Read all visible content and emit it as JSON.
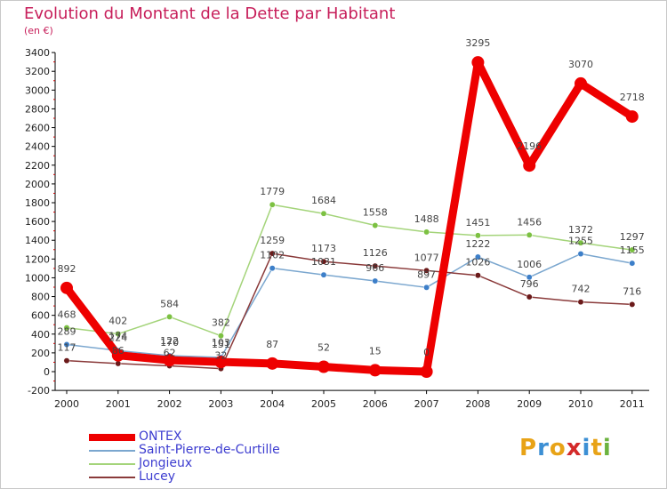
{
  "header": {
    "title": "Evolution du Montant de la Dette par Habitant",
    "subtitle": "(en €)"
  },
  "logo": {
    "text": "Proxiti",
    "letters": [
      "P",
      "r",
      "o",
      "x",
      "i",
      "t",
      "i"
    ],
    "colors": [
      "#e8a317",
      "#3c8fd4",
      "#e8a317",
      "#d42a2a",
      "#3c8fd4",
      "#e8a317",
      "#6cb33f"
    ]
  },
  "chart_data": {
    "type": "line",
    "title": "Evolution du Montant de la Dette par Habitant",
    "ylabel": "(en €)",
    "xlabel": "",
    "categories": [
      "2000",
      "2001",
      "2002",
      "2003",
      "2004",
      "2005",
      "2006",
      "2007",
      "2008",
      "2009",
      "2010",
      "2011"
    ],
    "ylim": [
      -200,
      3400
    ],
    "yticks": [
      -200,
      0,
      200,
      400,
      600,
      800,
      1000,
      1200,
      1400,
      1600,
      1800,
      2000,
      2200,
      2400,
      2600,
      2800,
      3000,
      3200,
      3400
    ],
    "series": [
      {
        "name": "ONTEX",
        "color": "#ee0000",
        "marker": "#ee0000",
        "values": [
          892,
          174,
          122,
          103,
          87,
          52,
          15,
          0,
          3295,
          2196,
          3070,
          2718
        ],
        "labels": [
          "892",
          "174",
          "122",
          "103",
          "87",
          "52",
          "15",
          "0",
          "3295",
          "2196",
          "3070",
          "2718"
        ]
      },
      {
        "name": "Saint-Pierre-de-Curtille",
        "color": "#7ba7cf",
        "marker": "#3d7fc9",
        "values": [
          289,
          224,
          170,
          151,
          1102,
          1031,
          966,
          897,
          1222,
          1006,
          1255,
          1155
        ],
        "labels": [
          "289",
          "224",
          "170",
          "151",
          "1102",
          "1031",
          "966",
          "897",
          "1222",
          "1006",
          "1255",
          "1155"
        ]
      },
      {
        "name": "Jongieux",
        "color": "#a4d47a",
        "marker": "#7cc142",
        "values": [
          468,
          402,
          584,
          382,
          1779,
          1684,
          1558,
          1488,
          1451,
          1456,
          1372,
          1297
        ],
        "labels": [
          "468",
          "402",
          "584",
          "382",
          "1779",
          "1684",
          "1558",
          "1488",
          "1451",
          "1456",
          "1372",
          "1297"
        ]
      },
      {
        "name": "Lucey",
        "color": "#8a3a3a",
        "marker": "#6b1a1a",
        "values": [
          117,
          86,
          62,
          32,
          1259,
          1173,
          1126,
          1077,
          1026,
          796,
          742,
          716
        ],
        "labels": [
          "117",
          "86",
          "62",
          "32",
          "1259",
          "1173",
          "1126",
          "1077",
          "1026",
          "796",
          "742",
          "716"
        ]
      }
    ],
    "legend": "bottom-left",
    "grid": false
  }
}
